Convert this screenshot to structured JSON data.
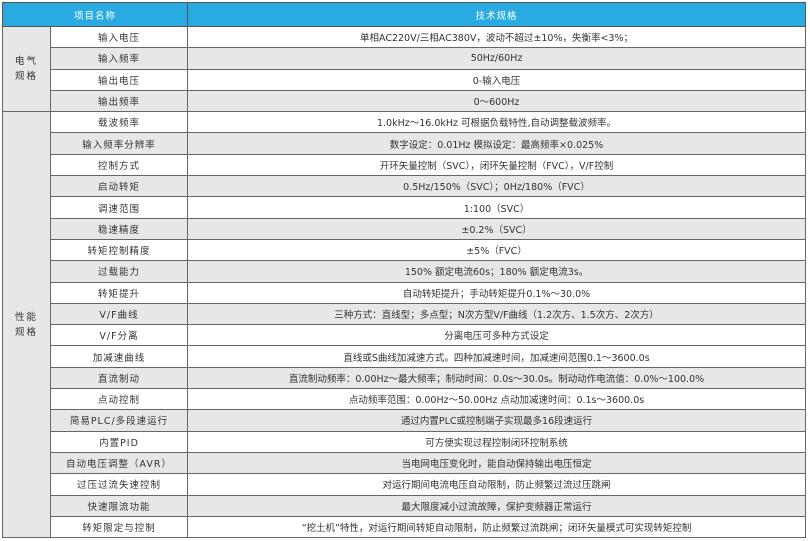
{
  "header": {
    "item_name": "项目名称",
    "spec": "技术规格"
  },
  "groups": [
    {
      "category": [
        "电气",
        "规格"
      ],
      "rows": [
        {
          "name": "输入电压",
          "spec": "单相AC220V/三相AC380V，波动不超过±10%，失衡率<3%；"
        },
        {
          "name": "输入频率",
          "spec": "50Hz/60Hz"
        },
        {
          "name": "输出电压",
          "spec": "0-输入电压"
        },
        {
          "name": "输出频率",
          "spec": "0～600Hz"
        }
      ]
    },
    {
      "category": [
        "性能",
        "规格"
      ],
      "rows": [
        {
          "name": "载波频率",
          "spec": "1.0kHz～16.0kHz 可根据负载特性,自动调整载波频率。"
        },
        {
          "name": "输入频率分辨率",
          "spec": "数字设定：0.01Hz 模拟设定：最高频率×0.025%"
        },
        {
          "name": "控制方式",
          "spec": "开环矢量控制（SVC），闭环矢量控制（FVC），V/F控制"
        },
        {
          "name": "启动转矩",
          "spec": "0.5Hz/150%（SVC）；0Hz/180%（FVC）"
        },
        {
          "name": "调速范围",
          "spec": "1:100（SVC）"
        },
        {
          "name": "稳速精度",
          "spec": "±0.2%（SVC）"
        },
        {
          "name": "转矩控制精度",
          "spec": "±5%（FVC）"
        },
        {
          "name": "过载能力",
          "spec": "150% 额定电流60s；180% 额定电流3s。"
        },
        {
          "name": "转矩提升",
          "spec": "自动转矩提升；手动转矩提升0.1%～30.0%"
        },
        {
          "name": "V/F曲线",
          "spec": "三种方式：直线型；多点型；N次方型V/F曲线（1.2次方、1.5次方、2次方）"
        },
        {
          "name": "V/F分离",
          "spec": "分离电压可多种方式设定"
        },
        {
          "name": "加减速曲线",
          "spec": "直线或S曲线加减速方式。四种加减速时间，加减速间范围0.1～3600.0s"
        },
        {
          "name": "直流制动",
          "spec": "直流制动频率：0.00Hz～最大频率；制动时间：0.0s～30.0s。制动动作电流值：0.0%～100.0%"
        },
        {
          "name": "点动控制",
          "spec": "点动频率范围：0.00Hz～50.00Hz 点动加减速时间：0.1s～3600.0s"
        },
        {
          "name": "简易PLC/多段速运行",
          "spec": "通过内置PLC或控制端子实现最多16段速运行"
        },
        {
          "name": "内置PID",
          "spec": "可方便实现过程控制闭环控制系统"
        },
        {
          "name": "自动电压调整（AVR）",
          "spec": "当电网电压变化时，能自动保持输出电压恒定"
        },
        {
          "name": "过压过流失速控制",
          "spec": "对运行期间电流电压自动限制，防止频繁过流过压跳闸"
        },
        {
          "name": "快速限流功能",
          "spec": "最大限度减小过流故障，保护变频器正常运行"
        },
        {
          "name": "转矩限定与控制",
          "spec": "“挖土机”特性，对运行期间转矩自动限制，防止频繁过流跳闸；闭环矢量模式可实现转矩控制"
        }
      ]
    }
  ],
  "colors": {
    "header_bg": "#29abe2",
    "shaded_row": "#e6e7e8",
    "border": "#666666"
  }
}
